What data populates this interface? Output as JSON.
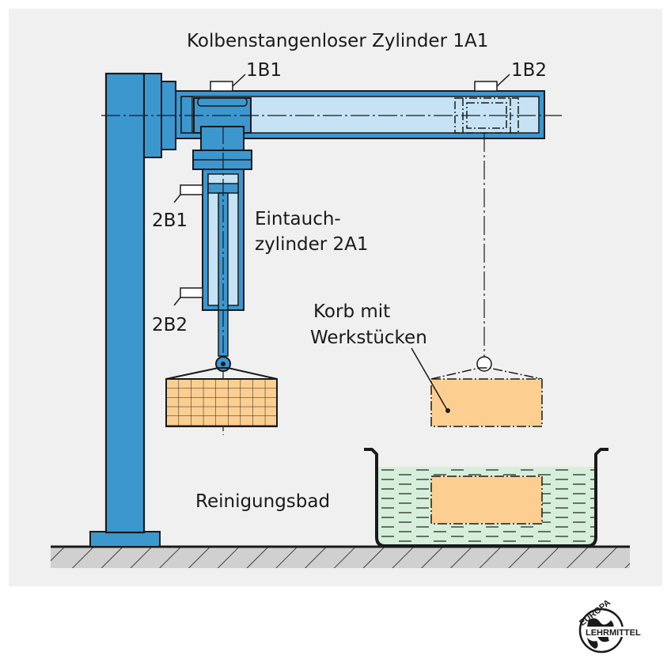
{
  "labels": {
    "rodless_cylinder": "Kolbenstangenloser Zylinder 1A1",
    "sensor_1b1": "1B1",
    "sensor_1b2": "1B2",
    "sensor_2b1": "2B1",
    "sensor_2b2": "2B2",
    "dip_cylinder_line1": "Eintauch-",
    "dip_cylinder_line2": "zylinder 2A1",
    "basket_line1": "Korb mit",
    "basket_line2": "Werkstücken",
    "cleaning_bath": "Reinigungsbad"
  },
  "logo": {
    "top": "EUROPA",
    "bottom": "LEHRMITTEL",
    "icon": "globe-logo-icon"
  },
  "colors": {
    "background": "#f0f0f0",
    "machine_blue": "#3d97cf",
    "cylinder_light_blue": "#c6e3f5",
    "basket_orange": "#fccf91",
    "bath_green": "#d6efdb",
    "ground_gray": "#d0d0d0"
  }
}
